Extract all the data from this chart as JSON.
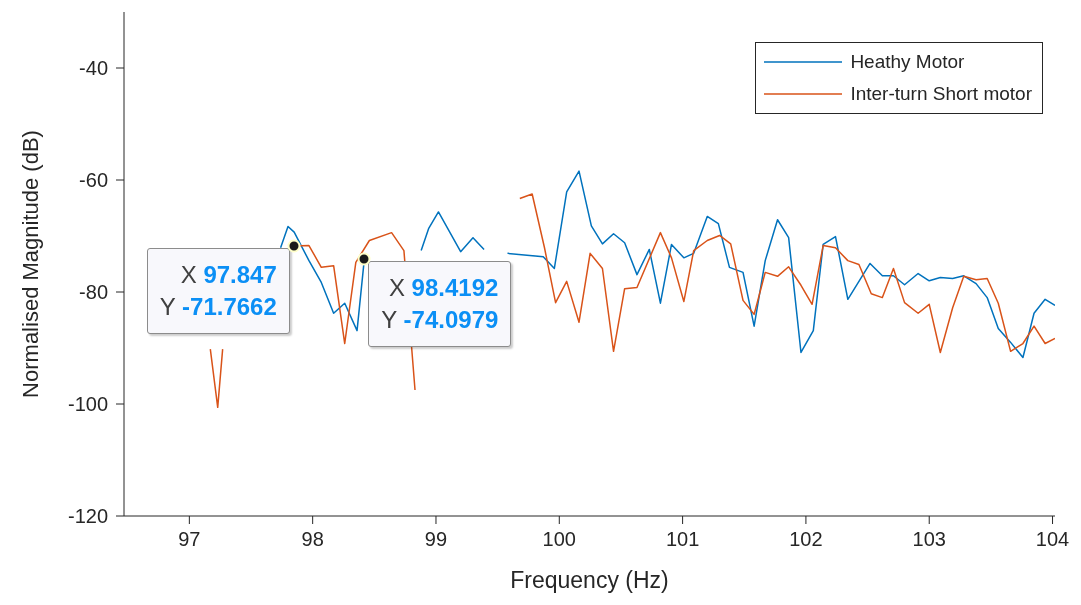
{
  "chart_data": {
    "type": "line",
    "xlabel": "Frequency (Hz)",
    "ylabel": "Normalised Magnitude (dB)",
    "xlim": [
      96.47,
      104.02
    ],
    "ylim": [
      -120,
      -30
    ],
    "xticks": [
      97,
      98,
      99,
      100,
      101,
      102,
      103,
      104
    ],
    "yticks": [
      -120,
      -100,
      -80,
      -60,
      -40
    ],
    "legend": "top right",
    "marker": "none",
    "line_style": "solid",
    "series": [
      {
        "name": "Heathy Motor",
        "color": "#0072bd",
        "x": [
          97.74,
          97.8,
          97.85,
          97.97,
          98.07,
          98.17,
          98.26,
          98.36,
          98.4192,
          98.6,
          98.88,
          98.94,
          99.02,
          99.2,
          99.3,
          99.39,
          99.48,
          99.58,
          99.87,
          99.96,
          100.06,
          100.16,
          100.26,
          100.35,
          100.44,
          100.53,
          100.63,
          100.73,
          100.82,
          100.91,
          101.01,
          101.09,
          101.2,
          101.29,
          101.38,
          101.49,
          101.58,
          101.67,
          101.77,
          101.86,
          101.96,
          102.06,
          102.14,
          102.24,
          102.34,
          102.52,
          102.62,
          102.71,
          102.8,
          102.91,
          103,
          103.09,
          103.19,
          103.28,
          103.38,
          103.47,
          103.56,
          103.66,
          103.76,
          103.85,
          103.94,
          104.02
        ],
        "values": [
          -72.1,
          -68.3,
          -69.3,
          -74.4,
          -78.3,
          -83.8,
          -82,
          -86.9,
          -74.0979,
          null,
          -72.6,
          -68.7,
          -65.7,
          -72.8,
          -70.3,
          -72.4,
          null,
          -73.1,
          -73.7,
          -75.8,
          -62.1,
          -58.4,
          -68.2,
          -71.4,
          -69.6,
          -71.2,
          -76.9,
          -72.4,
          -82,
          -71.5,
          -73.9,
          -73.1,
          -66.5,
          -67.8,
          -75.6,
          -76.5,
          -86.1,
          -74.4,
          -67.1,
          -70.3,
          -90.8,
          -86.9,
          -71.5,
          -70.1,
          -81.3,
          -74.9,
          -77.1,
          -77.1,
          -78.7,
          -76.7,
          -78,
          -77.4,
          -77.6,
          -77.1,
          -78.5,
          -81,
          -86.5,
          -89,
          -91.7,
          -83.8,
          -81.3,
          -82.4
        ]
      },
      {
        "name": "Inter-turn Short motor",
        "color": "#d95319",
        "x": [
          97.17,
          97.23,
          97.27,
          97.5,
          97.847,
          97.97,
          98.07,
          98.17,
          98.26,
          98.35,
          98.46,
          98.64,
          98.74,
          98.83,
          99.2,
          99.68,
          99.78,
          99.88,
          99.97,
          100.06,
          100.16,
          100.25,
          100.35,
          100.44,
          100.53,
          100.63,
          100.82,
          100.91,
          101.01,
          101.09,
          101.2,
          101.3,
          101.39,
          101.49,
          101.58,
          101.67,
          101.77,
          101.86,
          101.96,
          102.05,
          102.14,
          102.24,
          102.34,
          102.43,
          102.53,
          102.62,
          102.71,
          102.8,
          102.91,
          103,
          103.09,
          103.19,
          103.28,
          103.38,
          103.47,
          103.56,
          103.66,
          103.76,
          103.85,
          103.94,
          104.02
        ],
        "values": [
          -90.2,
          -100.6,
          -90.2,
          null,
          -71.7662,
          -71.7,
          -75.6,
          -75.3,
          -89.2,
          -74.7,
          -70.8,
          -69.4,
          -72.6,
          -97.5,
          null,
          -63.3,
          -62.5,
          -72.1,
          -81.9,
          -78.1,
          -85.4,
          -73.1,
          -75.8,
          -90.6,
          -79.4,
          -79.2,
          -69.4,
          -73.9,
          -81.7,
          -72.6,
          -70.8,
          -69.9,
          -71.4,
          -81.5,
          -84,
          -76.5,
          -77.2,
          -75.5,
          -78.8,
          -82.2,
          -71.7,
          -72.1,
          -74.4,
          -75.1,
          -80.3,
          -81,
          -75.8,
          -81.9,
          -83.8,
          -82.2,
          -90.8,
          -82.8,
          -77.2,
          -77.8,
          -77.6,
          -82,
          -90.6,
          -89.2,
          -86.1,
          -89.2,
          -88.3
        ]
      }
    ],
    "annotations": [
      {
        "text": "X 97.847\nY -71.7662",
        "x": 97.847,
        "y": -71.7662
      },
      {
        "text": "X 98.4192\nY -74.0979",
        "x": 98.4192,
        "y": -74.0979
      }
    ]
  }
}
